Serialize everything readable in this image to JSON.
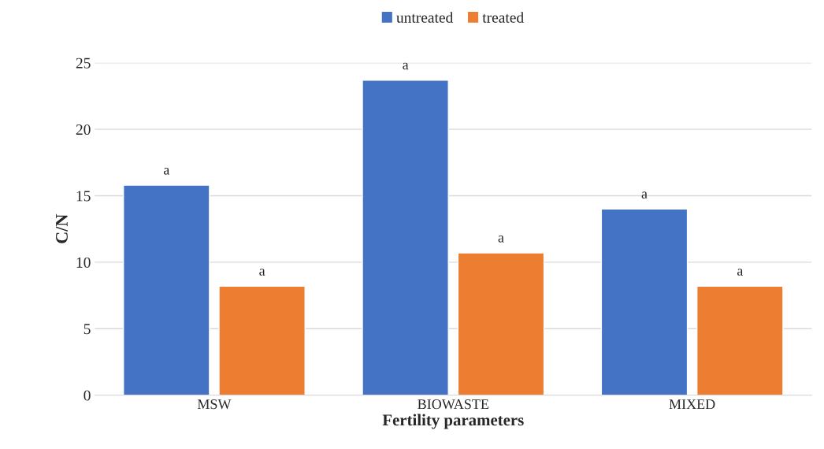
{
  "chart_data": {
    "type": "bar",
    "xlabel": "Fertility parameters",
    "ylabel": "C/N",
    "categories": [
      "MSW",
      "BIOWASTE",
      "MIXED"
    ],
    "series": [
      {
        "name": "untreated",
        "color": "#4472c4",
        "values": [
          15.8,
          23.7,
          14.0
        ],
        "value_labels": [
          "a",
          "a",
          "a"
        ]
      },
      {
        "name": "treated",
        "color": "#ed7d31",
        "values": [
          8.2,
          10.7,
          8.2
        ],
        "value_labels": [
          "a",
          "a",
          "a"
        ]
      }
    ],
    "ylim": [
      0,
      25
    ],
    "yticks": [
      0,
      5,
      10,
      15,
      20,
      25
    ],
    "grid": "y",
    "legend": "top"
  }
}
